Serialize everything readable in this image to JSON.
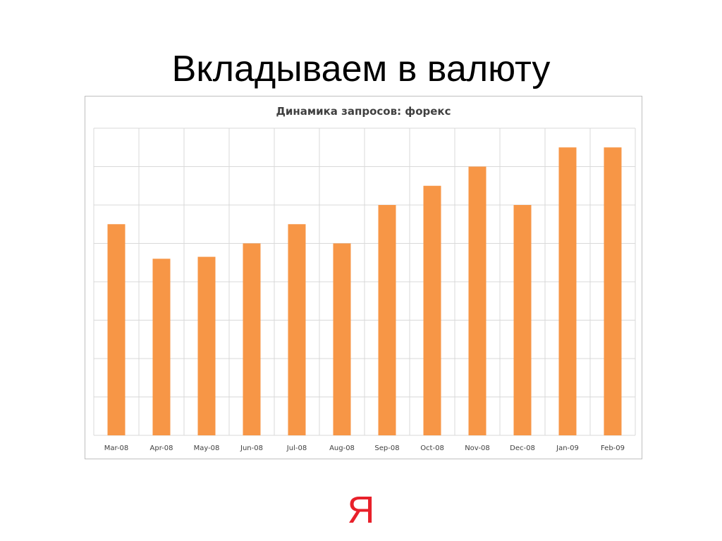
{
  "slide": {
    "title": "Вкладываем в валюту",
    "logo": "Я"
  },
  "colors": {
    "bar": "#f79646",
    "grid": "#d9d9d9",
    "brand": "#e8202a"
  },
  "chart_data": {
    "type": "bar",
    "title": "Динамика запросов: форекс",
    "xlabel": "",
    "ylabel": "",
    "categories": [
      "Mar-08",
      "Apr-08",
      "May-08",
      "Jun-08",
      "Jul-08",
      "Aug-08",
      "Sep-08",
      "Oct-08",
      "Nov-08",
      "Dec-08",
      "Jan-09",
      "Feb-09"
    ],
    "values": [
      5.5,
      4.6,
      4.65,
      5.0,
      5.5,
      5.0,
      6.0,
      6.5,
      7.0,
      6.0,
      7.5,
      7.5
    ],
    "ylim": [
      0,
      8
    ],
    "y_gridlines": 8,
    "grid": true,
    "legend": "none"
  }
}
